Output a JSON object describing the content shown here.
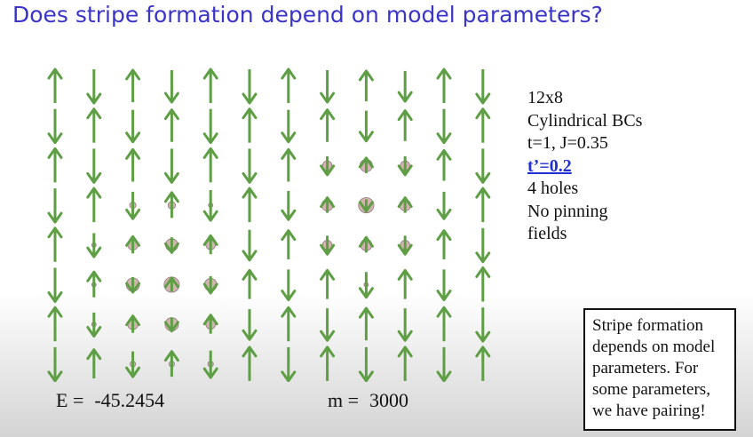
{
  "title": "Does stripe formation depend on model parameters?",
  "colors": {
    "title": "#3a34c8",
    "arrow": "#5e9e44",
    "hole": "#d6b3b3",
    "highlight": "#1f2fd1"
  },
  "lattice": {
    "columns": 12,
    "rows": 8,
    "spins": [
      [
        1,
        -1,
        1,
        -1,
        1,
        -1,
        1,
        -1,
        1,
        -1,
        1,
        -1
      ],
      [
        -1,
        1,
        -1,
        1,
        -1,
        1,
        -1,
        1,
        -1,
        1,
        -1,
        1
      ],
      [
        1,
        -1,
        1,
        -1,
        1,
        -1,
        1,
        -1,
        1,
        -1,
        1,
        -1
      ],
      [
        -1,
        1,
        -1,
        1,
        -1,
        1,
        -1,
        1,
        -1,
        1,
        -1,
        1
      ],
      [
        1,
        -1,
        1,
        -1,
        1,
        -1,
        1,
        -1,
        1,
        -1,
        1,
        -1
      ],
      [
        -1,
        1,
        -1,
        1,
        -1,
        1,
        -1,
        1,
        -1,
        1,
        -1,
        1
      ],
      [
        1,
        -1,
        1,
        -1,
        1,
        -1,
        1,
        -1,
        1,
        -1,
        1,
        -1
      ],
      [
        -1,
        1,
        -1,
        1,
        -1,
        1,
        -1,
        1,
        -1,
        1,
        -1,
        1
      ]
    ],
    "magnitude": [
      [
        1.0,
        1.0,
        0.95,
        0.95,
        1.0,
        1.0,
        1.0,
        0.95,
        0.9,
        0.9,
        1.0,
        1.0
      ],
      [
        1.0,
        1.0,
        0.95,
        0.95,
        1.0,
        1.0,
        0.95,
        0.95,
        0.9,
        0.9,
        1.0,
        1.0
      ],
      [
        1.0,
        1.0,
        0.95,
        1.0,
        1.0,
        1.0,
        0.95,
        0.55,
        0.45,
        0.55,
        0.9,
        1.0
      ],
      [
        1.0,
        1.0,
        0.8,
        0.75,
        0.9,
        1.0,
        0.85,
        0.45,
        0.35,
        0.45,
        0.8,
        1.0
      ],
      [
        1.0,
        0.7,
        0.5,
        0.45,
        0.55,
        0.9,
        0.85,
        0.55,
        0.45,
        0.55,
        0.85,
        1.0
      ],
      [
        1.0,
        0.75,
        0.45,
        0.4,
        0.5,
        0.85,
        0.9,
        0.85,
        0.75,
        0.85,
        0.9,
        1.0
      ],
      [
        1.0,
        0.7,
        0.5,
        0.4,
        0.55,
        0.9,
        1.0,
        0.95,
        0.95,
        0.95,
        1.0,
        1.0
      ],
      [
        1.0,
        0.85,
        0.75,
        0.75,
        0.8,
        1.0,
        1.0,
        1.0,
        1.0,
        1.0,
        1.0,
        1.0
      ]
    ],
    "hole_density": [
      [
        0,
        0,
        0,
        0,
        0,
        0,
        0,
        0,
        0,
        0,
        0,
        0
      ],
      [
        0,
        0,
        0,
        0,
        0,
        0,
        0,
        0,
        0,
        0,
        0,
        0
      ],
      [
        0,
        0,
        0,
        0,
        0,
        0,
        0,
        0.3,
        0.45,
        0.3,
        0,
        0
      ],
      [
        0,
        0,
        0.15,
        0.2,
        0.05,
        0,
        0,
        0.4,
        0.6,
        0.4,
        0,
        0
      ],
      [
        0,
        0.05,
        0.35,
        0.45,
        0.3,
        0,
        0,
        0.3,
        0.4,
        0.3,
        0,
        0
      ],
      [
        0,
        0.05,
        0.5,
        0.6,
        0.45,
        0,
        0,
        0,
        0.05,
        0,
        0,
        0
      ],
      [
        0,
        0.05,
        0.35,
        0.5,
        0.3,
        0,
        0,
        0,
        0,
        0,
        0,
        0
      ],
      [
        0,
        0,
        0.1,
        0.1,
        0.1,
        0,
        0,
        0,
        0,
        0,
        0,
        0
      ]
    ]
  },
  "params": {
    "lattice_size": "12x8",
    "boundary": "Cylindrical BCs",
    "hopping": "t=1, J=0.35",
    "tprime": "t’=0.2",
    "holes": "4 holes",
    "pinning_1": "No pinning",
    "pinning_2": "fields"
  },
  "energy": {
    "label": "E =",
    "value": "-45.2454"
  },
  "states": {
    "label": "m =",
    "value": "3000"
  },
  "note": "Stripe formation depends on model parameters.  For some parameters, we have pairing!"
}
